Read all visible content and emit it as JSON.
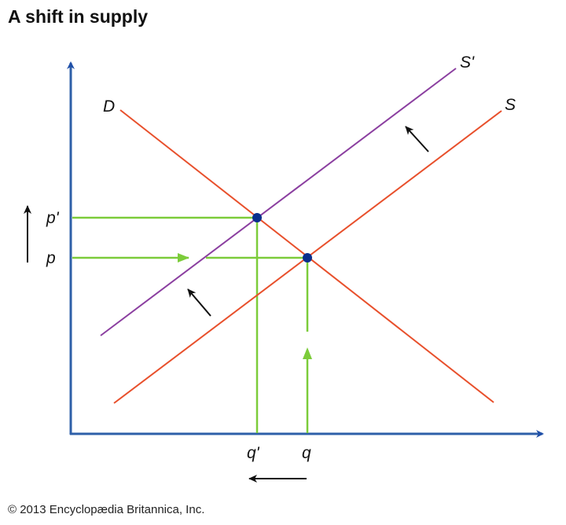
{
  "title": "A shift in supply",
  "credit": "© 2013 Encyclopædia Britannica, Inc.",
  "labels": {
    "demand": "D",
    "supply": "S",
    "supply_shifted": "S'",
    "price": "p",
    "price_new": "p'",
    "quantity": "q",
    "quantity_new": "q'"
  },
  "colors": {
    "axis": "#2e5fa8",
    "demand_supply": "#e8502c",
    "supply_shifted": "#8b3fa0",
    "guides": "#7ccc3a",
    "equilibrium": "#0a2f8c",
    "arrows": "#111111"
  }
}
